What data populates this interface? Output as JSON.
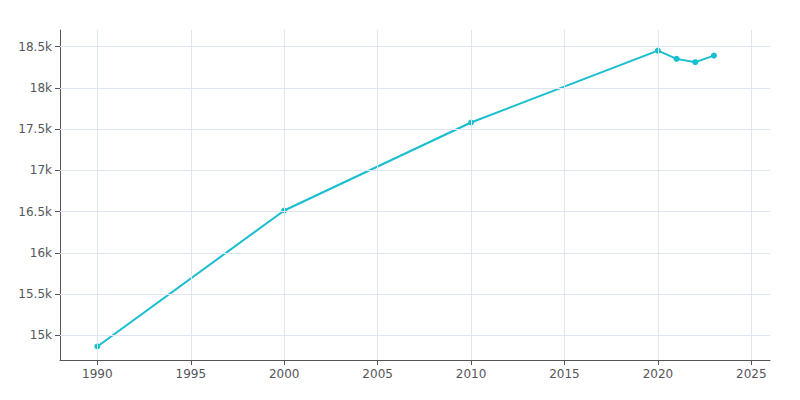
{
  "chart_data": {
    "type": "line",
    "x": [
      1990,
      2000,
      2010,
      2020,
      2021,
      2022,
      2023
    ],
    "values": [
      14864,
      16512,
      17579,
      18450,
      18350,
      18310,
      18390
    ],
    "color": "#17becf",
    "marker": "circle",
    "xlim": [
      1988,
      2026
    ],
    "ylim": [
      14700,
      18700
    ],
    "xticks": [
      1990,
      1995,
      2000,
      2005,
      2010,
      2015,
      2020,
      2025
    ],
    "yticks": [
      {
        "value": 15000,
        "label": "15k"
      },
      {
        "value": 15500,
        "label": "15.5k"
      },
      {
        "value": 16000,
        "label": "16k"
      },
      {
        "value": 16500,
        "label": "16.5k"
      },
      {
        "value": 17000,
        "label": "17k"
      },
      {
        "value": 17500,
        "label": "17.5k"
      },
      {
        "value": 18000,
        "label": "18k"
      },
      {
        "value": 18500,
        "label": "18.5k"
      }
    ],
    "grid": true
  }
}
